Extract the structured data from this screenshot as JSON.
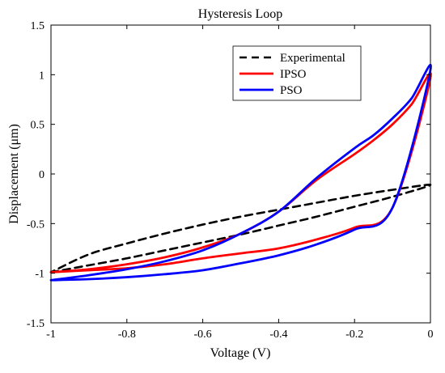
{
  "chart_data": {
    "type": "line",
    "title": "Hysteresis Loop",
    "xlabel": "Voltage (V)",
    "ylabel": "Displacement (μm)",
    "xlim": [
      -1,
      0
    ],
    "ylim": [
      -1.5,
      1.5
    ],
    "grid": false,
    "legend_position": "top-right",
    "x_ticks": [
      -1,
      -0.8,
      -0.6,
      -0.4,
      -0.2,
      0
    ],
    "y_ticks": [
      -1.5,
      -1,
      -0.5,
      0,
      0.5,
      1,
      1.5
    ],
    "x_tick_labels": [
      "-1",
      "-0.8",
      "-0.6",
      "-0.4",
      "-0.2",
      "0"
    ],
    "y_tick_labels": [
      "-1.5",
      "-1",
      "-0.5",
      "0",
      "0.5",
      "1",
      "1.5"
    ],
    "series": [
      {
        "name": "Experimental",
        "color": "#000000",
        "dash": "dashed",
        "x": [
          -1,
          -0.9,
          -0.8,
          -0.7,
          -0.6,
          -0.5,
          -0.4,
          -0.3,
          -0.2,
          -0.1,
          0,
          -0.1,
          -0.2,
          -0.3,
          -0.4,
          -0.5,
          -0.6,
          -0.7,
          -0.8,
          -0.9,
          -1
        ],
        "y": [
          -0.99,
          -0.92,
          -0.85,
          -0.77,
          -0.69,
          -0.61,
          -0.52,
          -0.43,
          -0.33,
          -0.23,
          -0.11,
          -0.16,
          -0.22,
          -0.29,
          -0.36,
          -0.43,
          -0.51,
          -0.6,
          -0.7,
          -0.81,
          -0.99
        ]
      },
      {
        "name": "IPSO",
        "color": "#ff0000",
        "dash": "solid",
        "x": [
          -1,
          -0.9,
          -0.8,
          -0.7,
          -0.6,
          -0.5,
          -0.4,
          -0.3,
          -0.2,
          -0.1,
          0,
          -0.05,
          -0.1,
          -0.15,
          -0.2,
          -0.3,
          -0.4,
          -0.5,
          -0.6,
          -0.7,
          -0.8,
          -0.9,
          -1
        ],
        "y": [
          -0.99,
          -0.97,
          -0.95,
          -0.91,
          -0.85,
          -0.8,
          -0.75,
          -0.66,
          -0.54,
          -0.34,
          0.97,
          0.7,
          0.5,
          0.34,
          0.2,
          -0.06,
          -0.38,
          -0.6,
          -0.74,
          -0.84,
          -0.91,
          -0.96,
          -0.99
        ]
      },
      {
        "name": "PSO",
        "color": "#0000ff",
        "dash": "solid",
        "x": [
          -1,
          -0.9,
          -0.8,
          -0.7,
          -0.6,
          -0.5,
          -0.4,
          -0.3,
          -0.2,
          -0.1,
          0,
          -0.05,
          -0.1,
          -0.15,
          -0.2,
          -0.3,
          -0.4,
          -0.5,
          -0.6,
          -0.7,
          -0.8,
          -0.9,
          -1
        ],
        "y": [
          -1.07,
          -1.06,
          -1.04,
          -1.01,
          -0.97,
          -0.9,
          -0.82,
          -0.71,
          -0.56,
          -0.34,
          1.05,
          0.76,
          0.56,
          0.39,
          0.26,
          -0.04,
          -0.38,
          -0.6,
          -0.77,
          -0.88,
          -0.96,
          -1.02,
          -1.07
        ]
      }
    ]
  }
}
